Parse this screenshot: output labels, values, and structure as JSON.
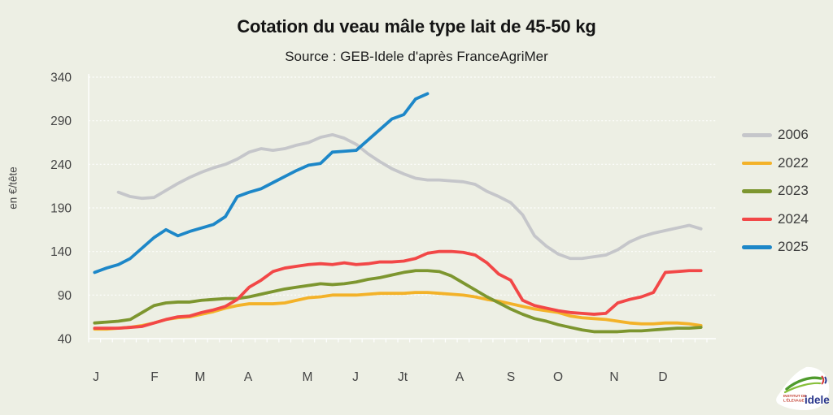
{
  "title": "Cotation du veau mâle type lait de 45-50 kg",
  "subtitle": "Source : GEB-Idele d'après FranceAgriMer",
  "colors": {
    "background": "#edefe4",
    "grid": "rgba(255,255,255,0.95)",
    "axis": "rgba(255,255,255,0.95)",
    "tick_text": "#454545",
    "title_text": "#141414"
  },
  "y_axis": {
    "label": "en €/tête",
    "ticks": [
      340,
      290,
      240,
      190,
      140,
      90,
      40
    ]
  },
  "x_axis": {
    "labels": [
      "J",
      "F",
      "M",
      "A",
      "M",
      "J",
      "Jt",
      "A",
      "S",
      "O",
      "N",
      "D"
    ],
    "positions": [
      118,
      190,
      246,
      305,
      378,
      437,
      495,
      565,
      628,
      686,
      755,
      815
    ]
  },
  "chart_data": {
    "type": "line",
    "title": "Cotation du veau mâle type lait de 45-50 kg",
    "source": "GEB-Idele d'après FranceAgriMer",
    "ylabel": "en €/tête",
    "ylim": [
      40,
      340
    ],
    "x_unit": "week_of_year",
    "grid": "horizontal-dashed",
    "legend_position": "right",
    "series": [
      {
        "name": "2006",
        "color": "#c5c6ca",
        "start_week": 3,
        "values": [
          208,
          203,
          201,
          202,
          210,
          218,
          225,
          231,
          236,
          240,
          246,
          254,
          258,
          256,
          258,
          262,
          265,
          271,
          274,
          270,
          263,
          252,
          243,
          235,
          229,
          224,
          222,
          222,
          221,
          220,
          217,
          209,
          203,
          196,
          182,
          158,
          146,
          137,
          132,
          132,
          134,
          136,
          142,
          151,
          157,
          161,
          164,
          167,
          170,
          166
        ]
      },
      {
        "name": "2022",
        "color": "#f3b229",
        "start_week": 1,
        "values": [
          51,
          51,
          52,
          53,
          55,
          58,
          62,
          64,
          65,
          68,
          71,
          75,
          78,
          80,
          80,
          80,
          81,
          84,
          87,
          88,
          90,
          90,
          90,
          91,
          92,
          92,
          92,
          93,
          93,
          92,
          91,
          90,
          88,
          85,
          83,
          80,
          77,
          74,
          72,
          70,
          66,
          64,
          63,
          62,
          60,
          58,
          57,
          57,
          58,
          58,
          57,
          55
        ]
      },
      {
        "name": "2023",
        "color": "#7d962f",
        "start_week": 1,
        "values": [
          58,
          59,
          60,
          62,
          70,
          78,
          81,
          82,
          82,
          84,
          85,
          86,
          86,
          88,
          91,
          94,
          97,
          99,
          101,
          103,
          102,
          103,
          105,
          108,
          110,
          113,
          116,
          118,
          118,
          117,
          112,
          104,
          96,
          88,
          81,
          74,
          68,
          63,
          60,
          56,
          53,
          50,
          48,
          48,
          48,
          49,
          49,
          50,
          51,
          52,
          52,
          53
        ]
      },
      {
        "name": "2024",
        "color": "#f24747",
        "start_week": 1,
        "values": [
          52,
          52,
          52,
          53,
          54,
          58,
          62,
          65,
          66,
          70,
          73,
          77,
          85,
          99,
          107,
          117,
          121,
          123,
          125,
          126,
          125,
          127,
          125,
          126,
          128,
          128,
          129,
          132,
          138,
          140,
          140,
          139,
          136,
          127,
          114,
          107,
          84,
          78,
          75,
          72,
          70,
          69,
          68,
          69,
          81,
          85,
          88,
          93,
          116,
          117,
          118,
          118
        ]
      },
      {
        "name": "2025",
        "color": "#1d87c8",
        "start_week": 1,
        "values": [
          116,
          121,
          125,
          132,
          144,
          156,
          165,
          158,
          163,
          167,
          171,
          180,
          203,
          208,
          212,
          219,
          226,
          233,
          239,
          241,
          254,
          255,
          256,
          268,
          280,
          292,
          297,
          315,
          321
        ]
      }
    ]
  },
  "logo": {
    "line1": "INSTITUT DE",
    "line2": "L'ÉLEVAGE",
    "name": "idele"
  }
}
